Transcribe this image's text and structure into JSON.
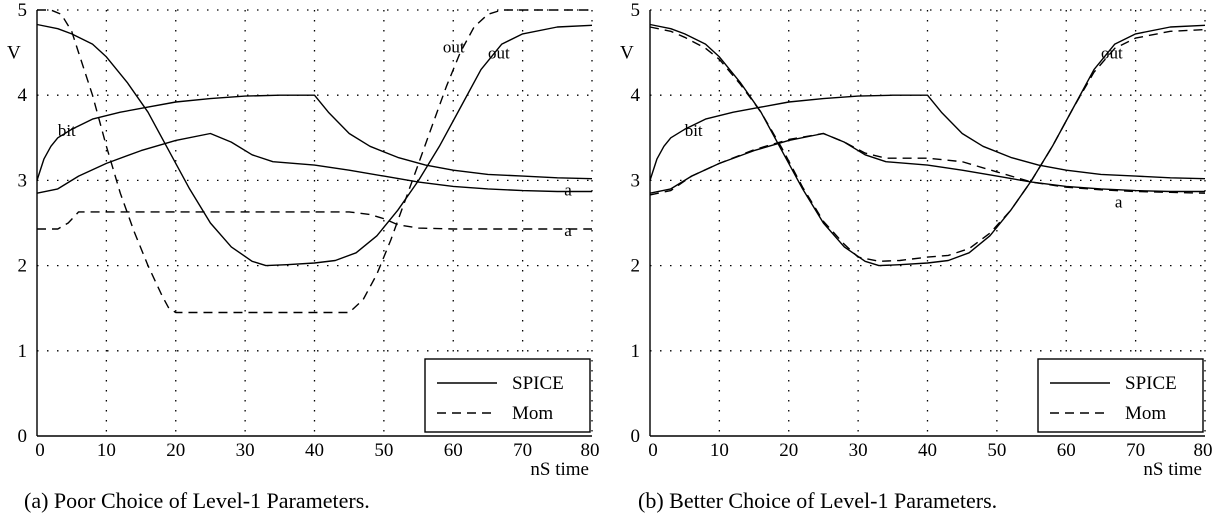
{
  "chart_data": [
    {
      "type": "line",
      "caption": "(a) Poor Choice of Level-1 Parameters.",
      "ylabel": "V",
      "xlabel": "nS  time",
      "xlim": [
        0,
        80
      ],
      "ylim": [
        0,
        5
      ],
      "xticks": [
        0,
        10,
        20,
        30,
        40,
        50,
        60,
        70,
        80
      ],
      "yticks": [
        0,
        1,
        2,
        3,
        4,
        5
      ],
      "grid": true,
      "legend": {
        "position": "bottom-right",
        "entries": [
          {
            "label": "SPICE",
            "dash": "solid"
          },
          {
            "label": "Mom",
            "dash": "dashed"
          }
        ]
      },
      "series": [
        {
          "style": "solid",
          "label": "bit",
          "label_at": [
            3,
            3.52
          ],
          "points": [
            [
              0,
              3.0
            ],
            [
              1,
              3.25
            ],
            [
              2,
              3.4
            ],
            [
              3,
              3.5
            ],
            [
              5,
              3.6
            ],
            [
              8,
              3.72
            ],
            [
              12,
              3.8
            ],
            [
              16,
              3.86
            ],
            [
              20,
              3.92
            ],
            [
              25,
              3.96
            ],
            [
              30,
              3.99
            ],
            [
              35,
              4.0
            ],
            [
              40,
              4.0
            ],
            [
              42,
              3.8
            ],
            [
              45,
              3.55
            ],
            [
              48,
              3.4
            ],
            [
              52,
              3.27
            ],
            [
              56,
              3.18
            ],
            [
              60,
              3.12
            ],
            [
              65,
              3.07
            ],
            [
              70,
              3.05
            ],
            [
              75,
              3.03
            ],
            [
              80,
              3.02
            ]
          ]
        },
        {
          "style": "solid",
          "label": "a",
          "label_at": [
            76,
            2.82
          ],
          "points": [
            [
              0,
              2.85
            ],
            [
              3,
              2.9
            ],
            [
              6,
              3.05
            ],
            [
              10,
              3.2
            ],
            [
              15,
              3.35
            ],
            [
              20,
              3.47
            ],
            [
              25,
              3.55
            ],
            [
              28,
              3.45
            ],
            [
              31,
              3.3
            ],
            [
              34,
              3.22
            ],
            [
              40,
              3.18
            ],
            [
              45,
              3.12
            ],
            [
              50,
              3.05
            ],
            [
              55,
              2.98
            ],
            [
              60,
              2.93
            ],
            [
              65,
              2.9
            ],
            [
              70,
              2.88
            ],
            [
              75,
              2.87
            ],
            [
              80,
              2.87
            ]
          ]
        },
        {
          "style": "solid",
          "label": "out",
          "label_at": [
            65,
            4.43
          ],
          "points": [
            [
              0,
              4.83
            ],
            [
              3,
              4.78
            ],
            [
              5,
              4.72
            ],
            [
              8,
              4.6
            ],
            [
              10,
              4.45
            ],
            [
              13,
              4.15
            ],
            [
              16,
              3.8
            ],
            [
              19,
              3.35
            ],
            [
              22,
              2.9
            ],
            [
              25,
              2.5
            ],
            [
              28,
              2.22
            ],
            [
              31,
              2.05
            ],
            [
              33,
              2.0
            ],
            [
              36,
              2.01
            ],
            [
              40,
              2.03
            ],
            [
              43,
              2.06
            ],
            [
              46,
              2.15
            ],
            [
              49,
              2.35
            ],
            [
              52,
              2.65
            ],
            [
              55,
              3.0
            ],
            [
              58,
              3.4
            ],
            [
              61,
              3.85
            ],
            [
              64,
              4.3
            ],
            [
              67,
              4.6
            ],
            [
              70,
              4.72
            ],
            [
              75,
              4.8
            ],
            [
              80,
              4.82
            ]
          ]
        },
        {
          "style": "dashed",
          "label": "out",
          "label_at": [
            58.5,
            4.5
          ],
          "points": [
            [
              0,
              5.0
            ],
            [
              2,
              5.0
            ],
            [
              3.5,
              4.95
            ],
            [
              5,
              4.75
            ],
            [
              6,
              4.5
            ],
            [
              8,
              4.0
            ],
            [
              10,
              3.4
            ],
            [
              12,
              2.85
            ],
            [
              14,
              2.4
            ],
            [
              16,
              2.0
            ],
            [
              18,
              1.65
            ],
            [
              19,
              1.5
            ],
            [
              20,
              1.45
            ],
            [
              25,
              1.45
            ],
            [
              30,
              1.45
            ],
            [
              35,
              1.45
            ],
            [
              40,
              1.45
            ],
            [
              45,
              1.45
            ],
            [
              47,
              1.6
            ],
            [
              49,
              1.9
            ],
            [
              51,
              2.3
            ],
            [
              53,
              2.75
            ],
            [
              55,
              3.2
            ],
            [
              57,
              3.65
            ],
            [
              59,
              4.1
            ],
            [
              61,
              4.5
            ],
            [
              63,
              4.8
            ],
            [
              65,
              4.95
            ],
            [
              67,
              5.0
            ],
            [
              80,
              5.0
            ]
          ]
        },
        {
          "style": "dashed",
          "label": "a",
          "label_at": [
            76,
            2.35
          ],
          "points": [
            [
              0,
              2.43
            ],
            [
              3,
              2.43
            ],
            [
              4.5,
              2.5
            ],
            [
              6,
              2.63
            ],
            [
              20,
              2.63
            ],
            [
              30,
              2.63
            ],
            [
              40,
              2.63
            ],
            [
              45,
              2.63
            ],
            [
              48,
              2.6
            ],
            [
              50,
              2.55
            ],
            [
              52,
              2.48
            ],
            [
              55,
              2.44
            ],
            [
              60,
              2.43
            ],
            [
              70,
              2.43
            ],
            [
              80,
              2.43
            ]
          ]
        }
      ]
    },
    {
      "type": "line",
      "caption": "(b) Better Choice of Level-1 Parameters.",
      "ylabel": "V",
      "xlabel": "nS  time",
      "xlim": [
        0,
        80
      ],
      "ylim": [
        0,
        5
      ],
      "xticks": [
        0,
        10,
        20,
        30,
        40,
        50,
        60,
        70,
        80
      ],
      "yticks": [
        0,
        1,
        2,
        3,
        4,
        5
      ],
      "grid": true,
      "legend": {
        "position": "bottom-right",
        "entries": [
          {
            "label": "SPICE",
            "dash": "solid"
          },
          {
            "label": "Mom",
            "dash": "dashed"
          }
        ]
      },
      "series": [
        {
          "style": "solid",
          "label": "bit",
          "label_at": [
            5,
            3.52
          ],
          "points": [
            [
              0,
              3.0
            ],
            [
              1,
              3.25
            ],
            [
              2,
              3.4
            ],
            [
              3,
              3.5
            ],
            [
              5,
              3.6
            ],
            [
              8,
              3.72
            ],
            [
              12,
              3.8
            ],
            [
              16,
              3.86
            ],
            [
              20,
              3.92
            ],
            [
              25,
              3.96
            ],
            [
              30,
              3.99
            ],
            [
              35,
              4.0
            ],
            [
              40,
              4.0
            ],
            [
              42,
              3.8
            ],
            [
              45,
              3.55
            ],
            [
              48,
              3.4
            ],
            [
              52,
              3.27
            ],
            [
              56,
              3.18
            ],
            [
              60,
              3.12
            ],
            [
              65,
              3.07
            ],
            [
              70,
              3.05
            ],
            [
              75,
              3.03
            ],
            [
              80,
              3.02
            ]
          ]
        },
        {
          "style": "solid",
          "label": "a",
          "label_at": [
            67,
            2.68
          ],
          "points": [
            [
              0,
              2.85
            ],
            [
              3,
              2.9
            ],
            [
              6,
              3.05
            ],
            [
              10,
              3.2
            ],
            [
              15,
              3.35
            ],
            [
              20,
              3.47
            ],
            [
              25,
              3.55
            ],
            [
              28,
              3.45
            ],
            [
              31,
              3.3
            ],
            [
              34,
              3.22
            ],
            [
              40,
              3.18
            ],
            [
              45,
              3.12
            ],
            [
              50,
              3.05
            ],
            [
              55,
              2.98
            ],
            [
              60,
              2.93
            ],
            [
              65,
              2.9
            ],
            [
              70,
              2.88
            ],
            [
              75,
              2.87
            ],
            [
              80,
              2.87
            ]
          ]
        },
        {
          "style": "solid",
          "label": "out",
          "label_at": [
            65,
            4.43
          ],
          "points": [
            [
              0,
              4.83
            ],
            [
              3,
              4.78
            ],
            [
              5,
              4.72
            ],
            [
              8,
              4.6
            ],
            [
              10,
              4.45
            ],
            [
              13,
              4.15
            ],
            [
              16,
              3.8
            ],
            [
              19,
              3.35
            ],
            [
              22,
              2.9
            ],
            [
              25,
              2.5
            ],
            [
              28,
              2.22
            ],
            [
              31,
              2.05
            ],
            [
              33,
              2.0
            ],
            [
              36,
              2.01
            ],
            [
              40,
              2.03
            ],
            [
              43,
              2.06
            ],
            [
              46,
              2.15
            ],
            [
              49,
              2.35
            ],
            [
              52,
              2.65
            ],
            [
              55,
              3.0
            ],
            [
              58,
              3.4
            ],
            [
              61,
              3.85
            ],
            [
              64,
              4.3
            ],
            [
              67,
              4.6
            ],
            [
              70,
              4.72
            ],
            [
              75,
              4.8
            ],
            [
              80,
              4.82
            ]
          ]
        },
        {
          "style": "dashed",
          "points": [
            [
              0,
              4.8
            ],
            [
              3,
              4.75
            ],
            [
              5,
              4.68
            ],
            [
              8,
              4.55
            ],
            [
              10,
              4.42
            ],
            [
              13,
              4.13
            ],
            [
              16,
              3.8
            ],
            [
              19,
              3.38
            ],
            [
              22,
              2.92
            ],
            [
              25,
              2.52
            ],
            [
              28,
              2.25
            ],
            [
              30,
              2.1
            ],
            [
              33,
              2.05
            ],
            [
              36,
              2.06
            ],
            [
              40,
              2.1
            ],
            [
              43,
              2.12
            ],
            [
              46,
              2.2
            ],
            [
              49,
              2.38
            ],
            [
              52,
              2.65
            ],
            [
              55,
              3.0
            ],
            [
              58,
              3.4
            ],
            [
              61,
              3.85
            ],
            [
              64,
              4.27
            ],
            [
              67,
              4.55
            ],
            [
              70,
              4.67
            ],
            [
              75,
              4.75
            ],
            [
              80,
              4.77
            ]
          ]
        },
        {
          "style": "dashed",
          "points": [
            [
              0,
              2.83
            ],
            [
              3,
              2.88
            ],
            [
              6,
              3.05
            ],
            [
              10,
              3.2
            ],
            [
              15,
              3.36
            ],
            [
              20,
              3.48
            ],
            [
              25,
              3.55
            ],
            [
              28,
              3.45
            ],
            [
              31,
              3.32
            ],
            [
              34,
              3.26
            ],
            [
              40,
              3.26
            ],
            [
              45,
              3.22
            ],
            [
              50,
              3.1
            ],
            [
              55,
              2.98
            ],
            [
              60,
              2.92
            ],
            [
              65,
              2.89
            ],
            [
              70,
              2.87
            ],
            [
              75,
              2.86
            ],
            [
              80,
              2.85
            ]
          ]
        }
      ]
    }
  ]
}
